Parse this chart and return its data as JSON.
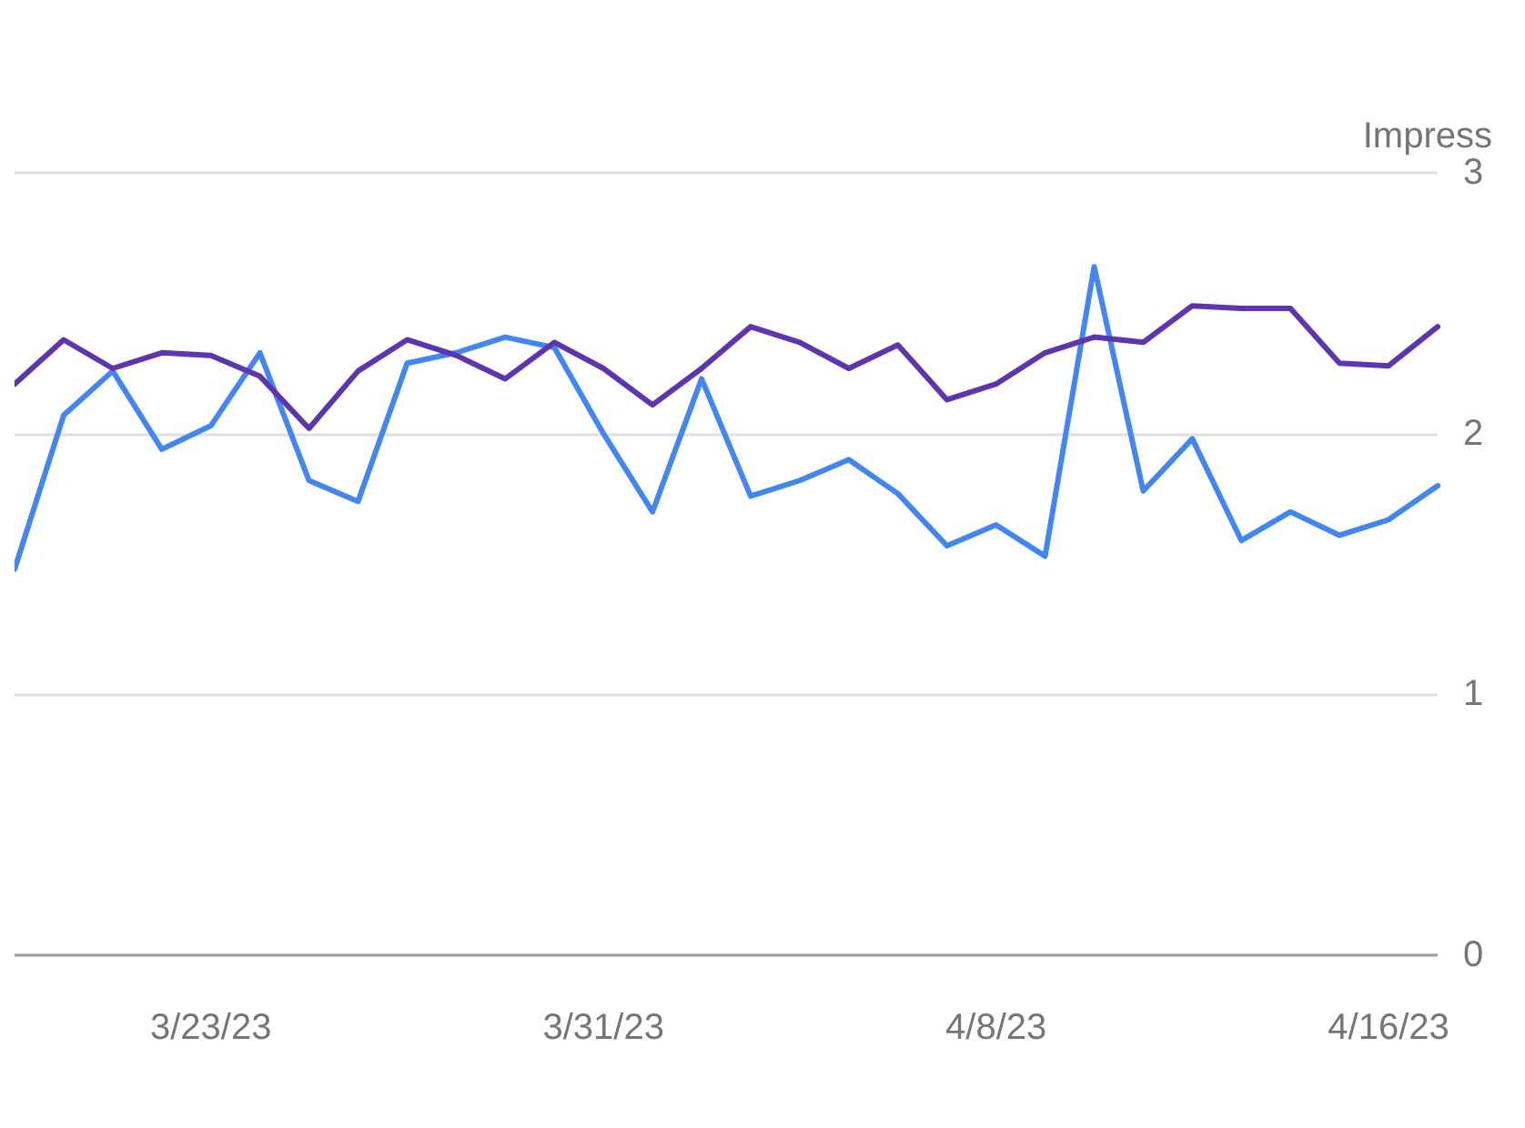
{
  "chart_data": {
    "type": "line",
    "ylabel": "Impress",
    "x": [
      "--03-19",
      "--03-20",
      "--03-21",
      "--03-22",
      "--03-23",
      "--03-24",
      "--03-25",
      "--03-26",
      "--03-27",
      "--03-28",
      "--03-29",
      "--03-30",
      "--03-31",
      "--04-01",
      "--04-02",
      "--04-03",
      "--04-04",
      "--04-05",
      "--04-06",
      "--04-07",
      "--04-08",
      "--04-09",
      "--04-10",
      "--04-11",
      "--04-12",
      "--04-13",
      "--04-14",
      "--04-15",
      "--04-16",
      "--04-17"
    ],
    "series": [
      {
        "color": "#4285f4",
        "values": [
          1.48,
          2.07,
          2.24,
          1.94,
          2.03,
          2.31,
          1.82,
          1.74,
          2.27,
          2.31,
          2.37,
          2.33,
          2.0,
          1.7,
          2.21,
          1.76,
          1.82,
          1.9,
          1.77,
          1.57,
          1.65,
          1.53,
          2.64,
          1.78,
          1.98,
          1.59,
          1.7,
          1.61,
          1.67,
          1.8
        ]
      },
      {
        "color": "#5e35b1",
        "values": [
          2.19,
          2.36,
          2.25,
          2.31,
          2.3,
          2.22,
          2.02,
          2.24,
          2.36,
          2.3,
          2.21,
          2.35,
          2.25,
          2.11,
          2.25,
          2.41,
          2.35,
          2.25,
          2.34,
          2.13,
          2.19,
          2.31,
          2.37,
          2.35,
          2.49,
          2.48,
          2.48,
          2.27,
          2.26,
          2.41
        ]
      }
    ],
    "xlim": [
      "--03-19",
      "--04-17"
    ],
    "xticks": [
      {
        "value": "--03-23",
        "label": "3/23/23"
      },
      {
        "value": "--03-31",
        "label": "3/31/23"
      },
      {
        "value": "--04-08",
        "label": "4/8/23"
      },
      {
        "value": "--04-16",
        "label": "4/16/23"
      }
    ],
    "ylim": [
      0,
      3
    ],
    "yticks": [
      0,
      1,
      2,
      3
    ],
    "grid": "y",
    "marker": "none",
    "line_style": "solid"
  }
}
